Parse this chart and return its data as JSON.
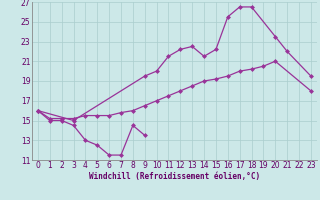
{
  "xlabel": "Windchill (Refroidissement éolien,°C)",
  "xlim": [
    -0.5,
    23.5
  ],
  "ylim": [
    11,
    27
  ],
  "yticks": [
    11,
    13,
    15,
    17,
    19,
    21,
    23,
    25,
    27
  ],
  "xticks": [
    0,
    1,
    2,
    3,
    4,
    5,
    6,
    7,
    8,
    9,
    10,
    11,
    12,
    13,
    14,
    15,
    16,
    17,
    18,
    19,
    20,
    21,
    22,
    23
  ],
  "bg_color": "#cce8e8",
  "grid_color": "#aacece",
  "line_color": "#993399",
  "line1_x": [
    0,
    1,
    2,
    3,
    4,
    5,
    6,
    7,
    8,
    9
  ],
  "line1_y": [
    16.0,
    15.0,
    15.0,
    14.5,
    13.0,
    12.5,
    11.5,
    11.5,
    14.5,
    13.5
  ],
  "line2_x": [
    0,
    1,
    2,
    3,
    4,
    5,
    6,
    7,
    8,
    9,
    10,
    11,
    12,
    13,
    14,
    15,
    16,
    17,
    18,
    19,
    20,
    23
  ],
  "line2_y": [
    16.0,
    15.2,
    15.2,
    15.2,
    15.5,
    15.5,
    15.5,
    15.8,
    16.0,
    16.5,
    17.0,
    17.5,
    18.0,
    18.5,
    19.0,
    19.2,
    19.5,
    20.0,
    20.2,
    20.5,
    21.0,
    18.0
  ],
  "line3_x": [
    0,
    3,
    9,
    10,
    11,
    12,
    13,
    14,
    15,
    16,
    17,
    18,
    20,
    21,
    23
  ],
  "line3_y": [
    16.0,
    15.0,
    19.5,
    20.0,
    21.5,
    22.2,
    22.5,
    21.5,
    22.2,
    25.5,
    26.5,
    26.5,
    23.5,
    22.0,
    19.5
  ],
  "marker_size": 2.5,
  "line_width": 0.9,
  "tick_fontsize": 5.5,
  "xlabel_fontsize": 5.5,
  "tick_color": "#660066",
  "xlabel_color": "#660066"
}
